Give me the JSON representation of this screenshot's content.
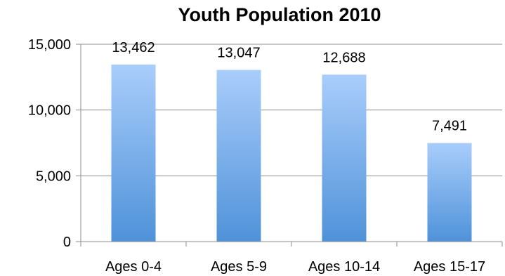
{
  "chart_data": {
    "type": "bar",
    "title": "Youth Population 2010",
    "xlabel": "",
    "ylabel": "",
    "categories": [
      "Ages 0-4",
      "Ages 5-9",
      "Ages 10-14",
      "Ages 15-17"
    ],
    "values": [
      13462,
      13047,
      12688,
      7491
    ],
    "data_labels": [
      "13,462",
      "13,047",
      "12,688",
      "7,491"
    ],
    "ylim": [
      0,
      15000
    ],
    "y_ticks": [
      0,
      5000,
      10000,
      15000
    ],
    "y_tick_labels": [
      "0",
      "5,000",
      "10,000",
      "15,000"
    ],
    "grid": true,
    "legend": "none",
    "colors": {
      "bar_top": "#a9cdfb",
      "bar_bottom": "#4f92d9",
      "grid": "#8c8c8c"
    }
  }
}
